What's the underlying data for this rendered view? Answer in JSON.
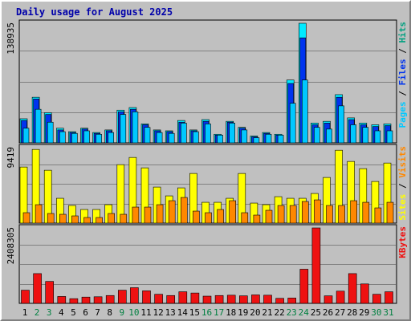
{
  "chart_data": {
    "type": "bar",
    "title": "Daily usage for August 2025",
    "categories": [
      "1",
      "2",
      "3",
      "4",
      "5",
      "6",
      "7",
      "8",
      "9",
      "10",
      "11",
      "12",
      "13",
      "14",
      "15",
      "16",
      "17",
      "18",
      "19",
      "20",
      "21",
      "22",
      "23",
      "24",
      "25",
      "26",
      "27",
      "28",
      "29",
      "30",
      "31"
    ],
    "weekend_days": [
      "2",
      "3",
      "9",
      "10",
      "16",
      "17",
      "23",
      "24",
      "30",
      "31"
    ],
    "colors": {
      "hits": "#00eaff",
      "files": "#0033ee",
      "pages": "#00c8ff",
      "visits": "#ff8800",
      "sites": "#ffff00",
      "kbytes": "#ee1111",
      "title": "#0000aa",
      "weekend_label": "#008040",
      "weekday_label": "#000000",
      "panel": "#c0c0c0",
      "grid": "#808080"
    },
    "panels": [
      {
        "id": "hits",
        "ymax_label": "138935",
        "ymax": 138935,
        "series": [
          {
            "name": "Hits",
            "values": [
              28000,
              53000,
              35000,
              17000,
              13000,
              17000,
              12000,
              15000,
              38000,
              41000,
              22000,
              15000,
              14000,
              26000,
              15000,
              27000,
              10000,
              25000,
              18000,
              8000,
              12000,
              10000,
              73000,
              138935,
              23000,
              25000,
              56000,
              29000,
              23000,
              21000,
              22000
            ]
          },
          {
            "name": "Files",
            "values": [
              26000,
              51000,
              33000,
              15000,
              12000,
              16000,
              11000,
              14000,
              36000,
              39000,
              21000,
              14000,
              13000,
              24000,
              14000,
              25000,
              9000,
              24000,
              17000,
              7000,
              11000,
              9000,
              69000,
              122000,
              21000,
              23000,
              53000,
              27000,
              21000,
              19000,
              20000
            ]
          },
          {
            "name": "Pages",
            "values": [
              17000,
              39000,
              24000,
              13000,
              11000,
              14000,
              10000,
              12000,
              33000,
              36000,
              18000,
              12000,
              11000,
              23000,
              13000,
              22000,
              9000,
              23000,
              15000,
              6000,
              10000,
              9000,
              46000,
              73000,
              18000,
              16000,
              43000,
              21000,
              18000,
              14000,
              14000
            ]
          }
        ],
        "axis_label": [
          {
            "text": "Pages",
            "color": "#00c8ff"
          },
          {
            "text": " / ",
            "color": "#000000"
          },
          {
            "text": "Files",
            "color": "#0033ee"
          },
          {
            "text": " / ",
            "color": "#000000"
          },
          {
            "text": "Hits",
            "color": "#00a080"
          }
        ]
      },
      {
        "id": "visits",
        "ymax_label": "9419",
        "ymax": 9419,
        "series": [
          {
            "name": "Sites",
            "values": [
              7000,
              9200,
              6600,
              3100,
              2200,
              1700,
              1700,
              2300,
              7300,
              8200,
              6900,
              4500,
              3400,
              4400,
              6200,
              2600,
              2600,
              3100,
              6200,
              2500,
              2300,
              3300,
              3100,
              3100,
              3700,
              5700,
              9100,
              7700,
              6800,
              5200,
              7500
            ]
          },
          {
            "name": "Visits",
            "values": [
              1300,
              2300,
              1200,
              1100,
              900,
              700,
              700,
              1200,
              1100,
              2000,
              2000,
              2300,
              2800,
              3200,
              1500,
              1300,
              1700,
              2800,
              1300,
              1000,
              1600,
              2200,
              2200,
              2700,
              2900,
              2200,
              2200,
              2800,
              2600,
              1900,
              2600
            ]
          }
        ],
        "axis_label": [
          {
            "text": "Sites",
            "color": "#ffff00"
          },
          {
            "text": " / ",
            "color": "#000000"
          },
          {
            "text": "Visits",
            "color": "#ff8800"
          }
        ]
      },
      {
        "id": "kbytes",
        "ymax_label": "2408305",
        "ymax": 2408305,
        "series": [
          {
            "name": "KBytes",
            "values": [
              420000,
              950000,
              700000,
              220000,
              150000,
              200000,
              210000,
              250000,
              420000,
              500000,
              400000,
              290000,
              250000,
              370000,
              330000,
              230000,
              250000,
              260000,
              240000,
              270000,
              260000,
              160000,
              170000,
              1090000,
              2408305,
              240000,
              390000,
              950000,
              620000,
              290000,
              370000
            ]
          }
        ],
        "axis_label": [
          {
            "text": "KBytes",
            "color": "#ee1111"
          }
        ]
      }
    ]
  }
}
